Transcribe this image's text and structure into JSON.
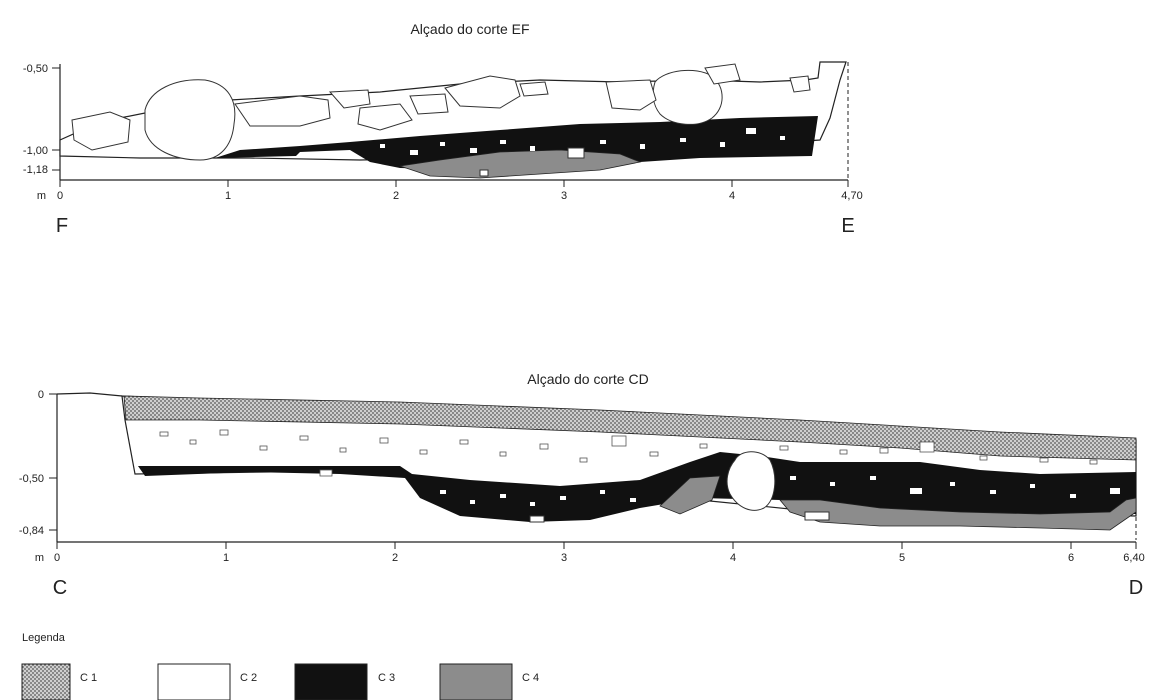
{
  "section_ef": {
    "title": "Alçado do corte EF",
    "y_ticks": [
      "-0,50",
      "-1,00",
      "-1,18"
    ],
    "x_unit": "m",
    "x_ticks": [
      "0",
      "1",
      "2",
      "3",
      "4",
      "4,70"
    ],
    "left_label": "F",
    "right_label": "E"
  },
  "section_cd": {
    "title": "Alçado do corte CD",
    "y_ticks": [
      "0",
      "-0,50",
      "-0,84"
    ],
    "x_unit": "m",
    "x_ticks": [
      "0",
      "1",
      "2",
      "3",
      "4",
      "5",
      "6",
      "6,40"
    ],
    "left_label": "C",
    "right_label": "D"
  },
  "legend": {
    "title": "Legenda",
    "items": [
      {
        "label": "C 1",
        "color": "#b0b0b0"
      },
      {
        "label": "C 2",
        "color": "#ffffff"
      },
      {
        "label": "C 3",
        "color": "#111111"
      },
      {
        "label": "C 4",
        "color": "#8c8c8c"
      }
    ]
  }
}
